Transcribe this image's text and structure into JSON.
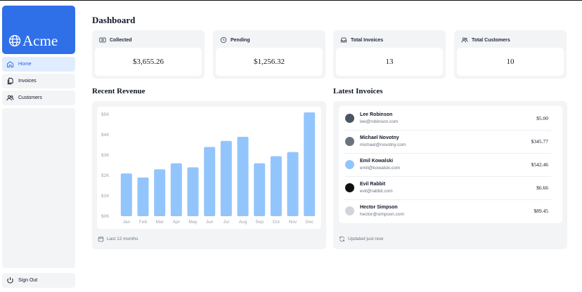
{
  "sidebar": {
    "brand": "Acme",
    "items": [
      {
        "label": "Home",
        "icon": "home-icon",
        "active": true
      },
      {
        "label": "Invoices",
        "icon": "document-icon",
        "active": false
      },
      {
        "label": "Customers",
        "icon": "users-icon",
        "active": false
      }
    ],
    "sign_out": "Sign Out"
  },
  "header": {
    "title": "Dashboard"
  },
  "cards": [
    {
      "label": "Collected",
      "value": "$3,655.26",
      "icon": "banknotes-icon"
    },
    {
      "label": "Pending",
      "value": "$1,256.32",
      "icon": "clock-icon"
    },
    {
      "label": "Total Invoices",
      "value": "13",
      "icon": "inbox-icon"
    },
    {
      "label": "Total Customers",
      "value": "10",
      "icon": "users-icon"
    }
  ],
  "revenue": {
    "title": "Recent Revenue",
    "footer": "Last 12 months",
    "footer_icon": "calendar-icon"
  },
  "chart_data": {
    "type": "bar",
    "categories": [
      "Jan",
      "Feb",
      "Mar",
      "Apr",
      "May",
      "Jun",
      "Jul",
      "Aug",
      "Sep",
      "Oct",
      "Nov",
      "Dec"
    ],
    "values": [
      2100,
      1900,
      2300,
      2600,
      2400,
      3400,
      3700,
      3900,
      2600,
      2950,
      3150,
      5100
    ],
    "ylim": [
      0,
      5000
    ],
    "ytick_values": [
      0,
      1000,
      2000,
      3000,
      4000,
      5000
    ],
    "ytick_labels": [
      "$0K",
      "$1K",
      "$2K",
      "$3K",
      "$4K",
      "$5K"
    ],
    "bar_color": "#93c5fd",
    "grid": false
  },
  "invoices": {
    "title": "Latest Invoices",
    "footer": "Updated just now",
    "footer_icon": "refresh-icon",
    "rows": [
      {
        "name": "Lee Robinson",
        "email": "lee@robinson.com",
        "amount": "$5.00",
        "avatar_color": "#4b5563"
      },
      {
        "name": "Michael Novotny",
        "email": "michael@novotny.com",
        "amount": "$345.77",
        "avatar_color": "#6b7280"
      },
      {
        "name": "Emil Kowalski",
        "email": "emil@kowalski.com",
        "amount": "$542.46",
        "avatar_color": "#93c5fd"
      },
      {
        "name": "Evil Rabbit",
        "email": "evil@rabbit.com",
        "amount": "$6.66",
        "avatar_color": "#111111"
      },
      {
        "name": "Hector Simpson",
        "email": "hector@simpson.com",
        "amount": "$89.45",
        "avatar_color": "#d1d5db"
      }
    ]
  },
  "colors": {
    "accent": "#2f6fe8",
    "active_bg": "#e0edff",
    "active_text": "#2563eb",
    "panel_bg": "#f3f4f6"
  }
}
